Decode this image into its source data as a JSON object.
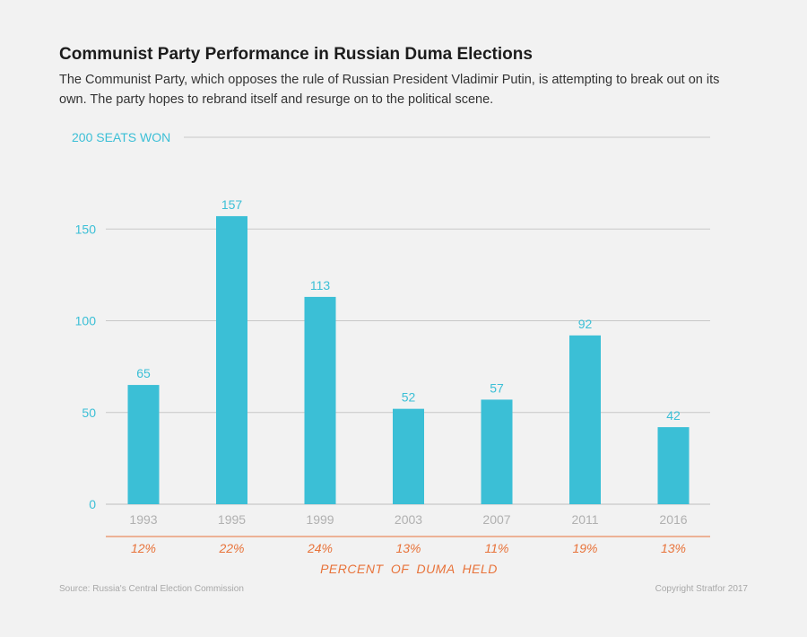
{
  "title": "Communist Party Performance in Russian Duma Elections",
  "subtitle": "The Communist Party, which opposes the rule of Russian President Vladimir Putin, is attempting to break out on its own. The party hopes to rebrand itself and resurge on to the political scene.",
  "source": "Source: Russia's Central Election Commission",
  "copyright": "Copyright Stratfor 2017",
  "colors": {
    "bar": "#3bbfd6",
    "axis_text": "#3bbfd6",
    "percent": "#e8733a",
    "year": "#b0b0b0"
  },
  "chart_data": {
    "type": "bar",
    "title": "Communist Party Performance in Russian Duma Elections",
    "ylabel": "SEATS WON",
    "ylim": [
      0,
      200
    ],
    "yticks": [
      {
        "value": 200,
        "label": "200 SEATS WON"
      },
      {
        "value": 150,
        "label": "150"
      },
      {
        "value": 100,
        "label": "100"
      },
      {
        "value": 50,
        "label": "50"
      },
      {
        "value": 0,
        "label": "0"
      }
    ],
    "categories": [
      "1993",
      "1995",
      "1999",
      "2003",
      "2007",
      "2011",
      "2016"
    ],
    "values": [
      65,
      157,
      113,
      52,
      57,
      92,
      42
    ],
    "value_labels": [
      "65",
      "157",
      "113",
      "52",
      "57",
      "92",
      "42"
    ],
    "percent_held": [
      "12%",
      "22%",
      "24%",
      "13%",
      "11%",
      "19%",
      "13%"
    ],
    "percent_label": "PERCENT OF DUMA HELD",
    "grid": true
  }
}
